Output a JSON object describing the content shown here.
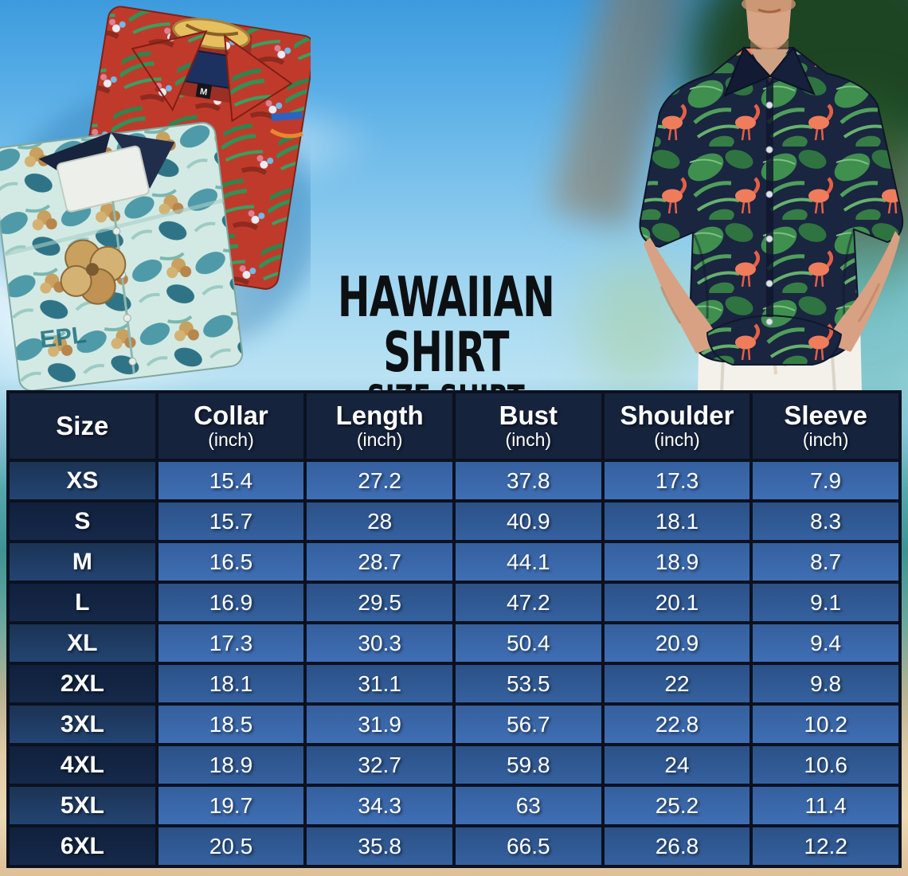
{
  "title": "HAWAIIAN SHIRT",
  "subtitle": "SIZE SHIRT",
  "table": {
    "header": [
      {
        "label": "Size",
        "unit": ""
      },
      {
        "label": "Collar",
        "unit": "(inch)"
      },
      {
        "label": "Length",
        "unit": "(inch)"
      },
      {
        "label": "Bust",
        "unit": "(inch)"
      },
      {
        "label": "Shoulder",
        "unit": "(inch)"
      },
      {
        "label": "Sleeve",
        "unit": "(inch)"
      }
    ],
    "rows": [
      [
        "XS",
        "15.4",
        "27.2",
        "37.8",
        "17.3",
        "7.9"
      ],
      [
        "S",
        "15.7",
        "28",
        "40.9",
        "18.1",
        "8.3"
      ],
      [
        "M",
        "16.5",
        "28.7",
        "44.1",
        "18.9",
        "8.7"
      ],
      [
        "L",
        "16.9",
        "29.5",
        "47.2",
        "20.1",
        "9.1"
      ],
      [
        "XL",
        "17.3",
        "30.3",
        "50.4",
        "20.9",
        "9.4"
      ],
      [
        "2XL",
        "18.1",
        "31.1",
        "53.5",
        "22",
        "9.8"
      ],
      [
        "3XL",
        "18.5",
        "31.9",
        "56.7",
        "22.8",
        "10.2"
      ],
      [
        "4XL",
        "18.9",
        "32.7",
        "59.8",
        "24",
        "10.6"
      ],
      [
        "5XL",
        "19.7",
        "34.3",
        "63",
        "25.2",
        "11.4"
      ],
      [
        "6XL",
        "20.5",
        "35.8",
        "66.5",
        "26.8",
        "12.2"
      ]
    ]
  },
  "chart_data": {
    "type": "table",
    "title": "HAWAIIAN SHIRT",
    "subtitle": "SIZE SHIRT",
    "columns": [
      "Size",
      "Collar (inch)",
      "Length (inch)",
      "Bust (inch)",
      "Shoulder (inch)",
      "Sleeve (inch)"
    ],
    "rows": [
      [
        "XS",
        15.4,
        27.2,
        37.8,
        17.3,
        7.9
      ],
      [
        "S",
        15.7,
        28,
        40.9,
        18.1,
        8.3
      ],
      [
        "M",
        16.5,
        28.7,
        44.1,
        18.9,
        8.7
      ],
      [
        "L",
        16.9,
        29.5,
        47.2,
        20.1,
        9.1
      ],
      [
        "XL",
        17.3,
        30.3,
        50.4,
        20.9,
        9.4
      ],
      [
        "2XL",
        18.1,
        31.1,
        53.5,
        22,
        9.8
      ],
      [
        "3XL",
        18.5,
        31.9,
        56.7,
        22.8,
        10.2
      ],
      [
        "4XL",
        18.9,
        32.7,
        59.8,
        24,
        10.6
      ],
      [
        "5XL",
        19.7,
        34.3,
        63,
        25.2,
        11.4
      ],
      [
        "6XL",
        20.5,
        35.8,
        66.5,
        26.8,
        12.2
      ]
    ]
  },
  "decor": {
    "red_shirt_size_tag": "M",
    "teal_shirt_print": "EPL"
  },
  "colors": {
    "header_bg": "#16233d",
    "size_cell_light": "#1b3354",
    "size_cell_dark": "#10203c",
    "data_cell_light": "#35609e",
    "data_cell_dark": "#2b5187",
    "cell_border": "#0b1120",
    "table_text": "#ffffff",
    "title_text": "#0c1013",
    "sky_blue": "#3d9bdd",
    "sea_teal": "#3f9294",
    "sand": "#e0cba6",
    "model_shirt_navy": "#1a2540",
    "leaf_green": "#3f8f4f",
    "flamingo_pink": "#ef7d5c",
    "red_shirt": "#c03a2b",
    "teal_shirt": "#d3eae4"
  }
}
